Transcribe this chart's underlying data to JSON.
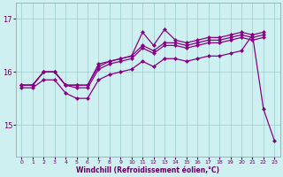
{
  "xlabel": "Windchill (Refroidissement éolien,°C)",
  "bg_color": "#cff0f0",
  "line_color": "#880088",
  "grid_color": "#99cccc",
  "hours": [
    0,
    1,
    2,
    3,
    4,
    5,
    6,
    7,
    8,
    9,
    10,
    11,
    12,
    13,
    14,
    15,
    16,
    17,
    18,
    19,
    20,
    21,
    22,
    23
  ],
  "line_upper": [
    15.75,
    15.75,
    16.0,
    16.0,
    15.75,
    15.75,
    15.75,
    16.15,
    16.2,
    16.25,
    16.3,
    16.75,
    16.5,
    16.8,
    16.6,
    16.55,
    16.6,
    16.65,
    16.65,
    16.7,
    16.75,
    16.7,
    16.75,
    null
  ],
  "line_mid1": [
    15.75,
    15.75,
    16.0,
    16.0,
    15.75,
    15.75,
    15.75,
    16.1,
    16.2,
    16.25,
    16.3,
    16.5,
    16.4,
    16.55,
    16.55,
    16.5,
    16.55,
    16.6,
    16.6,
    16.65,
    16.7,
    16.65,
    16.7,
    null
  ],
  "line_mid2": [
    15.75,
    15.75,
    16.0,
    16.0,
    15.75,
    15.7,
    15.7,
    16.05,
    16.15,
    16.2,
    16.25,
    16.45,
    16.35,
    16.5,
    16.5,
    16.45,
    16.5,
    16.55,
    16.55,
    16.6,
    16.65,
    16.6,
    16.65,
    null
  ],
  "line_drop": [
    15.7,
    15.7,
    15.85,
    15.85,
    15.6,
    15.5,
    15.5,
    15.85,
    15.95,
    16.0,
    16.05,
    16.2,
    16.1,
    16.25,
    16.25,
    16.2,
    16.25,
    16.3,
    16.3,
    16.35,
    16.4,
    16.7,
    15.3,
    14.7
  ],
  "yticks": [
    15,
    16,
    17
  ],
  "ylim": [
    14.4,
    17.3
  ],
  "xlim_min": -0.5,
  "xlim_max": 23.5
}
